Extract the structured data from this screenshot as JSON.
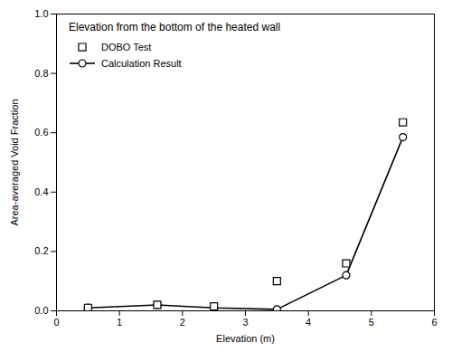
{
  "chart_data": {
    "type": "line",
    "title": "Elevation from the bottom of the heated wall",
    "xlabel": "Elevation (m)",
    "ylabel": "Area-averaged Void Fraction",
    "xlim": [
      0,
      6
    ],
    "ylim": [
      0.0,
      1.0
    ],
    "xticks": [
      0,
      1,
      2,
      3,
      4,
      5,
      6
    ],
    "yticks": [
      {
        "value": 0.0,
        "label": "0.0"
      },
      0.2,
      0.4,
      0.6,
      0.8,
      {
        "value": 1.0,
        "label": "1.0"
      }
    ],
    "x": [
      0.5,
      1.6,
      2.5,
      3.5,
      4.6,
      5.5
    ],
    "series": [
      {
        "name": "DOBO Test",
        "type": "scatter",
        "marker": "square",
        "color": "black",
        "values": [
          0.01,
          0.02,
          0.015,
          0.1,
          0.16,
          0.635
        ]
      },
      {
        "name": "Calculation Result",
        "type": "line",
        "marker": "circle",
        "color": "black",
        "values": [
          0.01,
          0.02,
          0.01,
          0.005,
          0.12,
          0.585
        ]
      }
    ],
    "legend": "upper left"
  }
}
